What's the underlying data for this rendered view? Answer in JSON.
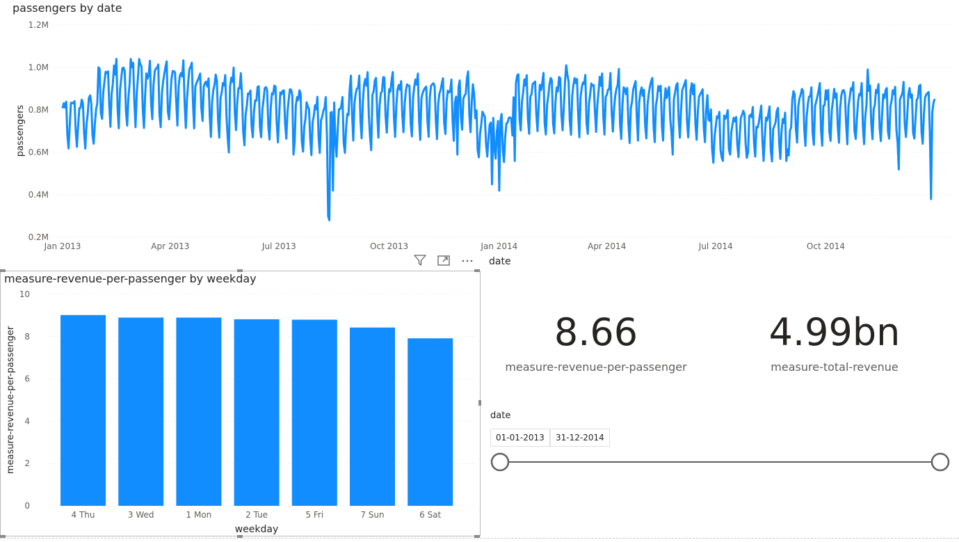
{
  "chart_data": [
    {
      "type": "line",
      "title": "passengers by date",
      "xlabel": "date",
      "ylabel": "passengers",
      "y_ticks": [
        "0.2M",
        "0.4M",
        "0.6M",
        "0.8M",
        "1.0M",
        "1.2M"
      ],
      "y_tick_values": [
        200000,
        400000,
        600000,
        800000,
        1000000,
        1200000
      ],
      "ylim": [
        200000,
        1200000
      ],
      "x_ticks": [
        "Jan 2013",
        "Apr 2013",
        "Jul 2013",
        "Oct 2013",
        "Jan 2014",
        "Apr 2014",
        "Jul 2014",
        "Oct 2014"
      ],
      "x_tick_days": [
        0,
        90,
        181,
        273,
        365,
        455,
        546,
        638
      ],
      "x_range_days": [
        0,
        729
      ],
      "series": [
        {
          "name": "passengers",
          "color": "#118dff",
          "weekly_pattern": [
            790000,
            850000,
            870000,
            880000,
            900000,
            720000,
            650000
          ],
          "segment_levels": [
            {
              "from_day": 0,
              "to_day": 30,
              "level": 0.78
            },
            {
              "from_day": 30,
              "to_day": 120,
              "level": 0.92
            },
            {
              "from_day": 120,
              "to_day": 150,
              "level": 0.88
            },
            {
              "from_day": 150,
              "to_day": 200,
              "level": 0.82
            },
            {
              "from_day": 200,
              "to_day": 240,
              "level": 0.76
            },
            {
              "from_day": 240,
              "to_day": 345,
              "level": 0.86
            },
            {
              "from_day": 345,
              "to_day": 375,
              "level": 0.72
            },
            {
              "from_day": 375,
              "to_day": 470,
              "level": 0.87
            },
            {
              "from_day": 470,
              "to_day": 540,
              "level": 0.84
            },
            {
              "from_day": 540,
              "to_day": 610,
              "level": 0.72
            },
            {
              "from_day": 610,
              "to_day": 729,
              "level": 0.82
            }
          ],
          "dips": [
            {
              "day": 139,
              "value": 600000
            },
            {
              "day": 193,
              "value": 590000
            },
            {
              "day": 222,
              "value": 300000
            },
            {
              "day": 223,
              "value": 280000
            },
            {
              "day": 226,
              "value": 420000
            },
            {
              "day": 258,
              "value": 610000
            },
            {
              "day": 330,
              "value": 590000
            },
            {
              "day": 359,
              "value": 450000
            },
            {
              "day": 365,
              "value": 420000
            },
            {
              "day": 378,
              "value": 560000
            },
            {
              "day": 510,
              "value": 590000
            },
            {
              "day": 552,
              "value": 560000
            },
            {
              "day": 573,
              "value": 600000
            },
            {
              "day": 605,
              "value": 560000
            },
            {
              "day": 699,
              "value": 520000
            },
            {
              "day": 726,
              "value": 380000
            }
          ],
          "peaks": [
            {
              "day": 57,
              "value": 1040000
            },
            {
              "day": 64,
              "value": 1040000
            },
            {
              "day": 421,
              "value": 1010000
            },
            {
              "day": 673,
              "value": 990000
            }
          ]
        }
      ]
    },
    {
      "type": "bar",
      "title": "measure-revenue-per-passenger by weekday",
      "xlabel": "weekday",
      "ylabel": "measure-revenue-per-passenger",
      "categories": [
        "4 Thu",
        "3 Wed",
        "1 Mon",
        "2 Tue",
        "5 Fri",
        "7 Sun",
        "6 Sat"
      ],
      "values": [
        9.02,
        8.9,
        8.9,
        8.82,
        8.8,
        8.43,
        7.92
      ],
      "y_ticks": [
        "0",
        "2",
        "4",
        "6",
        "8",
        "10"
      ],
      "ylim": [
        0,
        10
      ],
      "color": "#118dff"
    }
  ],
  "cards": [
    {
      "value": "8.66",
      "label": "measure-revenue-per-passenger"
    },
    {
      "value": "4.99bn",
      "label": "measure-total-revenue"
    }
  ],
  "slicer": {
    "title": "date",
    "start": "01-01-2013",
    "end": "31-12-2014",
    "start_fraction": 0,
    "end_fraction": 1
  },
  "header_icons": [
    "filter-icon",
    "focus-mode-icon",
    "more-options-icon"
  ]
}
